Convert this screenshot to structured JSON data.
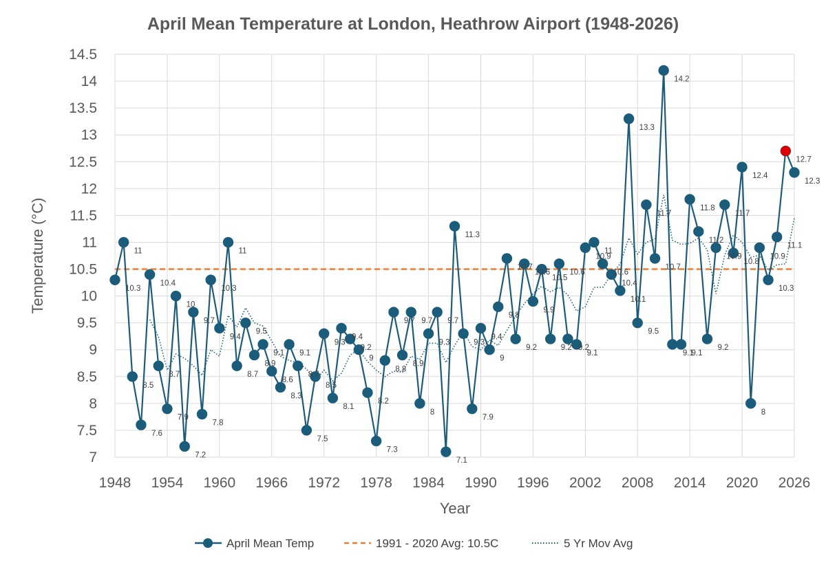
{
  "chart_data": {
    "type": "line",
    "title": "April Mean Temperature at London, Heathrow Airport (1948-2026)",
    "xlabel": "Year",
    "ylabel": "Temperature (°C)",
    "xlim": [
      1948,
      2026
    ],
    "ylim": [
      7,
      14.5
    ],
    "x_ticks": [
      "1948",
      "1954",
      "1960",
      "1966",
      "1972",
      "1978",
      "1984",
      "1990",
      "1996",
      "2002",
      "2008",
      "2014",
      "2020",
      "2026"
    ],
    "y_ticks": [
      "7",
      "7.5",
      "8",
      "8.5",
      "9",
      "9.5",
      "10",
      "10.5",
      "11",
      "11.5",
      "12",
      "12.5",
      "13",
      "13.5",
      "14",
      "14.5"
    ],
    "grid": true,
    "legend_position": "bottom",
    "colors": {
      "series": "#1b5c7a",
      "average": "#ed7d31",
      "moving_average": "#1b5c7a",
      "highlight": "#e00000",
      "grid": "#d9d9d9",
      "text": "#595959"
    },
    "highlight_year": 2025,
    "series": [
      {
        "name": "April Mean Temp",
        "style": "solid-markers",
        "x": [
          1948,
          1949,
          1950,
          1951,
          1952,
          1953,
          1954,
          1955,
          1956,
          1957,
          1958,
          1959,
          1960,
          1961,
          1962,
          1963,
          1964,
          1965,
          1966,
          1967,
          1968,
          1969,
          1970,
          1971,
          1972,
          1973,
          1974,
          1975,
          1976,
          1977,
          1978,
          1979,
          1980,
          1981,
          1982,
          1983,
          1984,
          1985,
          1986,
          1987,
          1988,
          1989,
          1990,
          1991,
          1992,
          1993,
          1994,
          1995,
          1996,
          1997,
          1998,
          1999,
          2000,
          2001,
          2002,
          2003,
          2004,
          2005,
          2006,
          2007,
          2008,
          2009,
          2010,
          2011,
          2012,
          2013,
          2014,
          2015,
          2016,
          2017,
          2018,
          2019,
          2020,
          2021,
          2022,
          2023,
          2024,
          2025,
          2026
        ],
        "values": [
          10.3,
          11,
          8.5,
          7.6,
          10.4,
          8.7,
          7.9,
          10,
          7.2,
          9.7,
          7.8,
          10.3,
          9.4,
          11,
          8.7,
          9.5,
          8.9,
          9.1,
          8.6,
          8.3,
          9.1,
          8.7,
          7.5,
          8.5,
          9.3,
          8.1,
          9.4,
          9.2,
          9,
          8.2,
          7.3,
          8.8,
          9.7,
          8.9,
          9.7,
          8,
          9.3,
          9.7,
          7.1,
          11.3,
          9.3,
          7.9,
          9.4,
          9,
          9.8,
          10.7,
          9.2,
          10.6,
          9.9,
          10.5,
          9.2,
          10.6,
          9.2,
          9.1,
          10.9,
          11,
          10.6,
          10.4,
          10.1,
          13.3,
          9.5,
          11.7,
          10.7,
          14.2,
          9.1,
          9.1,
          11.8,
          11.2,
          9.2,
          10.9,
          11.7,
          10.8,
          12.4,
          8,
          10.9,
          10.3,
          11.1,
          12.7,
          12.3
        ]
      },
      {
        "name": "1991 - 2020 Avg: 10.5C",
        "style": "dashed",
        "x": [
          1948,
          2026
        ],
        "values": [
          10.5,
          10.5
        ]
      },
      {
        "name": "5 Yr Mov Avg",
        "style": "dotted",
        "x": [
          1952,
          1953,
          1954,
          1955,
          1956,
          1957,
          1958,
          1959,
          1960,
          1961,
          1962,
          1963,
          1964,
          1965,
          1966,
          1967,
          1968,
          1969,
          1970,
          1971,
          1972,
          1973,
          1974,
          1975,
          1976,
          1977,
          1978,
          1979,
          1980,
          1981,
          1982,
          1983,
          1984,
          1985,
          1986,
          1987,
          1988,
          1989,
          1990,
          1991,
          1992,
          1993,
          1994,
          1995,
          1996,
          1997,
          1998,
          1999,
          2000,
          2001,
          2002,
          2003,
          2004,
          2005,
          2006,
          2007,
          2008,
          2009,
          2010,
          2011,
          2012,
          2013,
          2014,
          2015,
          2016,
          2017,
          2018,
          2019,
          2020,
          2021,
          2022,
          2023,
          2024,
          2025,
          2026
        ],
        "values": [
          9.56,
          9.24,
          8.62,
          8.92,
          8.84,
          8.7,
          8.52,
          9.0,
          8.88,
          9.64,
          9.42,
          9.78,
          9.5,
          9.44,
          9.16,
          8.88,
          8.8,
          8.76,
          8.64,
          8.42,
          8.62,
          8.42,
          8.56,
          8.9,
          9.0,
          8.78,
          8.62,
          8.5,
          8.6,
          8.58,
          8.88,
          8.82,
          9.12,
          9.12,
          8.76,
          9.08,
          9.34,
          9.06,
          9.0,
          9.18,
          9.08,
          9.36,
          9.62,
          9.86,
          10.04,
          10.18,
          10.08,
          10.16,
          10.02,
          9.72,
          9.8,
          10.16,
          10.16,
          10.4,
          10.6,
          11.08,
          10.78,
          11.0,
          11.06,
          11.88,
          11.04,
          10.96,
          10.98,
          11.08,
          10.86,
          10.04,
          10.76,
          11.14,
          11.0,
          10.72,
          10.76,
          10.48,
          10.58,
          10.6,
          11.46
        ]
      }
    ],
    "data_labels": [
      "10.3",
      "11",
      "8.5",
      "7.6",
      "10.4",
      "8.7",
      "7.9",
      "10",
      "7.2",
      "9.7",
      "7.8",
      "10.3",
      "9.4",
      "11",
      "8.7",
      "9.5",
      "8.9",
      "9.1",
      "8.6",
      "8.3",
      "9.1",
      "8.7",
      "7.5",
      "8.5",
      "9.3",
      "8.1",
      "9.4",
      "9.2",
      "9",
      "8.2",
      "7.3",
      "8.8",
      "9.7",
      "8.9",
      "9.7",
      "8",
      "9.3",
      "9.7",
      "7.1",
      "11.3",
      "9.3",
      "7.9",
      "9.4",
      "9",
      "9.8",
      "10.7",
      "9.2",
      "10.6",
      "9.9",
      "10.5",
      "9.2",
      "10.6",
      "9.2",
      "9.1",
      "10.9",
      "11",
      "10.6",
      "10.4",
      "10.1",
      "13.3",
      "9.5",
      "11.7",
      "10.7",
      "14.2",
      "9.1",
      "9.1",
      "11.8",
      "11.2",
      "9.2",
      "10.9",
      "11.7",
      "10.8",
      "12.4",
      "8",
      "10.9",
      "10.3",
      "11.1",
      "12.7",
      "12.3"
    ]
  }
}
